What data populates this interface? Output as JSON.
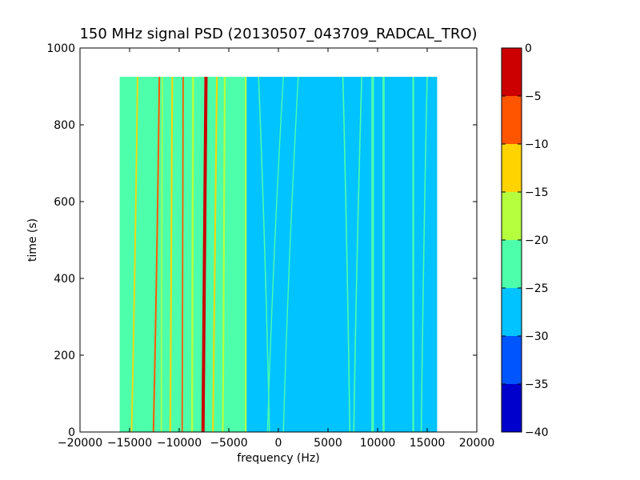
{
  "chart_data": {
    "type": "heatmap",
    "title": "150 MHz signal PSD (20130507_043709_RADCAL_TRO)",
    "xlabel": "frequency (Hz)",
    "ylabel": "time (s)",
    "xlim": [
      -20000,
      20000
    ],
    "ylim": [
      0,
      1000
    ],
    "xticks": [
      -20000,
      -15000,
      -10000,
      -5000,
      0,
      5000,
      10000,
      15000,
      20000
    ],
    "yticks": [
      0,
      200,
      400,
      600,
      800,
      1000
    ],
    "data_extent": {
      "x": [
        -16000,
        16000
      ],
      "y": [
        0,
        925
      ]
    },
    "background_level": {
      "x_low": -16000,
      "x_split": -3200,
      "x_high": 16000,
      "left_value": -22.5,
      "right_value": -27.5
    },
    "features": [
      {
        "f0": -15800,
        "f1": -15400,
        "t0": 0,
        "t1": 925,
        "value": -22.5,
        "width": 300
      },
      {
        "f0": -14800,
        "f1": -14200,
        "t0": 0,
        "t1": 925,
        "value": -12.5,
        "width": 140
      },
      {
        "f0": -12600,
        "f1": -12000,
        "t0": 0,
        "t1": 925,
        "value": -7.5,
        "width": 160
      },
      {
        "f0": -11800,
        "f1": -11700,
        "t0": 0,
        "t1": 925,
        "value": -17.5,
        "width": 120
      },
      {
        "f0": -10900,
        "f1": -10700,
        "t0": 0,
        "t1": 925,
        "value": -12.5,
        "width": 160
      },
      {
        "f0": -9700,
        "f1": -9600,
        "t0": 0,
        "t1": 925,
        "value": -7.5,
        "width": 140
      },
      {
        "f0": -8700,
        "f1": -8600,
        "t0": 0,
        "t1": 925,
        "value": -17.5,
        "width": 200
      },
      {
        "f0": -7600,
        "f1": -7300,
        "t0": 0,
        "t1": 925,
        "value": -2.5,
        "width": 320
      },
      {
        "f0": -6600,
        "f1": -6200,
        "t0": 0,
        "t1": 925,
        "value": -12.5,
        "width": 160
      },
      {
        "f0": -5600,
        "f1": -5400,
        "t0": 0,
        "t1": 925,
        "value": -17.5,
        "width": 180
      },
      {
        "f0": -4800,
        "f1": -4700,
        "t0": 0,
        "t1": 925,
        "value": -22.5,
        "width": 220
      },
      {
        "f0": -3300,
        "f1": -3300,
        "t0": 0,
        "t1": 925,
        "value": -17.5,
        "width": 160
      },
      {
        "f0": -2000,
        "f1": -900,
        "t0": 925,
        "t1": 0,
        "value": -22.5,
        "width": 120
      },
      {
        "f0": 500,
        "f1": -1100,
        "t0": 925,
        "t1": 0,
        "value": -22.5,
        "width": 110
      },
      {
        "f0": 2000,
        "f1": 500,
        "t0": 925,
        "t1": 0,
        "value": -22.5,
        "width": 110
      },
      {
        "f0": 6500,
        "f1": 7200,
        "t0": 925,
        "t1": 0,
        "value": -22.5,
        "width": 130
      },
      {
        "f0": 8400,
        "f1": 7600,
        "t0": 925,
        "t1": 0,
        "value": -22.5,
        "width": 130
      },
      {
        "f0": 9500,
        "f1": 9500,
        "t0": 0,
        "t1": 925,
        "value": -22.5,
        "width": 260
      },
      {
        "f0": 10600,
        "f1": 10600,
        "t0": 0,
        "t1": 925,
        "value": -22.5,
        "width": 220
      },
      {
        "f0": 13600,
        "f1": 13600,
        "t0": 0,
        "t1": 925,
        "value": -22.5,
        "width": 180
      },
      {
        "f0": 15000,
        "f1": 14400,
        "t0": 925,
        "t1": 0,
        "value": -22.5,
        "width": 120
      }
    ],
    "colorbar": {
      "levels": [
        -40,
        -35,
        -30,
        -25,
        -20,
        -15,
        -10,
        -5,
        0
      ],
      "colors": [
        "#0000cc",
        "#0055ff",
        "#00c3ff",
        "#4dffaa",
        "#b5ff3f",
        "#ffd300",
        "#ff5500",
        "#cc0000"
      ],
      "tick_labels": [
        "−40",
        "−35",
        "−30",
        "−25",
        "−20",
        "−15",
        "−10",
        "−5",
        "0"
      ]
    }
  }
}
